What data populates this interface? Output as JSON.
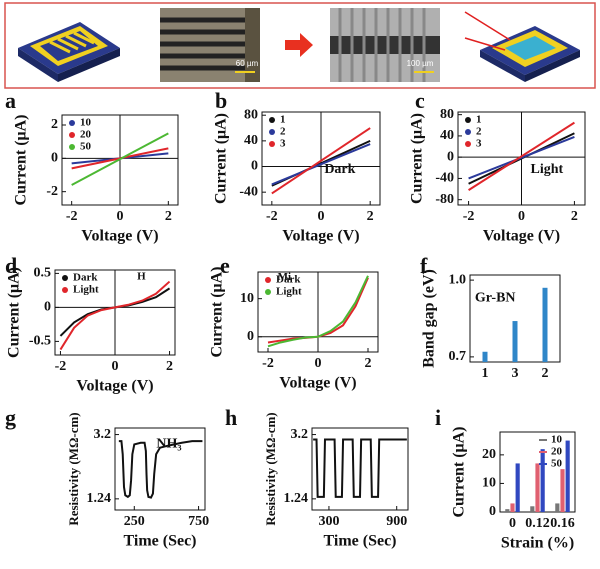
{
  "header": {
    "scale_bars": [
      "60 µm",
      "100 µm"
    ]
  },
  "chart_data": [
    {
      "panel": "a",
      "type": "line",
      "x": [
        -2,
        2
      ],
      "series": [
        {
          "name": "10",
          "color": "#2b3a9b",
          "values": [
            -0.3,
            0.3
          ]
        },
        {
          "name": "20",
          "color": "#e0262b",
          "values": [
            -0.6,
            0.6
          ]
        },
        {
          "name": "50",
          "color": "#4cb833",
          "values": [
            -1.6,
            1.5
          ]
        }
      ],
      "xlim": [
        -2.4,
        2.4
      ],
      "ylim": [
        -2.8,
        2.6
      ],
      "xticks": [
        -2,
        0,
        2
      ],
      "yticks": [
        -2,
        0,
        2
      ],
      "xlabel": "Voltage (V)",
      "ylabel": "Current (μA)",
      "legend": "upper left",
      "zero_lines": true
    },
    {
      "panel": "b",
      "type": "line",
      "x": [
        -2,
        2
      ],
      "series": [
        {
          "name": "1",
          "color": "#111111",
          "values": [
            -30,
            40
          ]
        },
        {
          "name": "2",
          "color": "#2b3a9b",
          "values": [
            -28,
            35
          ]
        },
        {
          "name": "3",
          "color": "#e0262b",
          "values": [
            -42,
            60
          ]
        }
      ],
      "xlim": [
        -2.4,
        2.4
      ],
      "ylim": [
        -60,
        85
      ],
      "xticks": [
        -2,
        0,
        2
      ],
      "yticks": [
        -40,
        0,
        40,
        80
      ],
      "xlabel": "Voltage (V)",
      "ylabel": "Current (μA)",
      "legend": "upper left",
      "zero_lines": true,
      "annotation": "Dark"
    },
    {
      "panel": "c",
      "type": "line",
      "x": [
        -2,
        2
      ],
      "series": [
        {
          "name": "1",
          "color": "#111111",
          "values": [
            -50,
            45
          ]
        },
        {
          "name": "2",
          "color": "#2b3a9b",
          "values": [
            -40,
            38
          ]
        },
        {
          "name": "3",
          "color": "#e0262b",
          "values": [
            -62,
            65
          ]
        }
      ],
      "xlim": [
        -2.4,
        2.4
      ],
      "ylim": [
        -90,
        85
      ],
      "xticks": [
        -2,
        0,
        2
      ],
      "yticks": [
        -80,
        -40,
        0,
        40,
        80
      ],
      "xlabel": "Voltage (V)",
      "ylabel": "Current (μA)",
      "legend": "upper left",
      "zero_lines": true,
      "annotation": "Light"
    },
    {
      "panel": "d",
      "type": "line",
      "x": [
        -2,
        -1.5,
        -1,
        -0.5,
        0,
        0.5,
        1,
        1.5,
        2
      ],
      "series": [
        {
          "name": "Dark",
          "color": "#111111",
          "values": [
            -0.42,
            -0.22,
            -0.1,
            -0.03,
            0,
            0.03,
            0.08,
            0.15,
            0.28
          ]
        },
        {
          "name": "Light",
          "color": "#e0262b",
          "values": [
            -0.62,
            -0.3,
            -0.12,
            -0.04,
            0,
            0.04,
            0.1,
            0.2,
            0.38
          ]
        }
      ],
      "xlim": [
        -2.2,
        2.2
      ],
      "ylim": [
        -0.7,
        0.55
      ],
      "xticks": [
        -2,
        0,
        2
      ],
      "yticks": [
        -0.5,
        0,
        0.5
      ],
      "xlabel": "Voltage (V)",
      "ylabel": "Current (μA)",
      "legend": "upper left",
      "zero_lines": true,
      "annotation": "H"
    },
    {
      "panel": "e",
      "type": "line",
      "x": [
        -2,
        -1.5,
        -1,
        -0.5,
        0,
        0.5,
        1,
        1.5,
        2
      ],
      "series": [
        {
          "name": "Dark",
          "color": "#e0262b",
          "values": [
            -1.5,
            -1,
            -0.5,
            -0.3,
            0,
            1,
            3,
            8,
            15.5
          ]
        },
        {
          "name": "Light",
          "color": "#4cb833",
          "values": [
            -2.5,
            -1.5,
            -0.8,
            -0.2,
            0,
            1.5,
            4,
            9,
            16
          ]
        }
      ],
      "xlim": [
        -2.4,
        2.4
      ],
      "ylim": [
        -4,
        17
      ],
      "xticks": [
        -2,
        0,
        2
      ],
      "yticks": [
        0,
        10
      ],
      "xlabel": "Voltage (V)",
      "ylabel": "Current (μA)",
      "legend": "upper left",
      "zero_lines": true,
      "annotation": "Mi"
    },
    {
      "panel": "f",
      "type": "bar",
      "categories": [
        "1",
        "3",
        "2"
      ],
      "values": [
        0.72,
        0.84,
        0.97
      ],
      "color": "#2f86c8",
      "ylim": [
        0.68,
        1.02
      ],
      "yticks": [
        0.7,
        {
          "value": 1,
          "label": "1.0"
        }
      ],
      "ylabel": "Band gap (eV)",
      "annotation": "Gr-BN"
    },
    {
      "panel": "g",
      "type": "line",
      "x": [
        130,
        150,
        160,
        170,
        180,
        200,
        215,
        225,
        235,
        250,
        300,
        330,
        340,
        345,
        350,
        360,
        380,
        395,
        405,
        420,
        450,
        500,
        560,
        620,
        700,
        780
      ],
      "values": [
        3.0,
        3.0,
        2.6,
        1.6,
        1.35,
        1.3,
        1.35,
        1.8,
        2.6,
        2.9,
        2.95,
        2.95,
        2.7,
        2.0,
        1.5,
        1.3,
        1.28,
        1.4,
        2.0,
        2.6,
        2.8,
        2.85,
        2.9,
        2.95,
        3.0,
        3.0
      ],
      "color": "#111111",
      "xlim": [
        100,
        800
      ],
      "ylim": [
        0.9,
        3.4
      ],
      "xticks": [
        250,
        750
      ],
      "yticks": [
        1.24,
        3.2
      ],
      "xlabel": "Time (Sec)",
      "ylabel": "Resistivity (MΩ-cm)",
      "annotation": "NH₃"
    },
    {
      "panel": "h",
      "type": "line",
      "x": [
        160,
        190,
        200,
        255,
        265,
        350,
        360,
        415,
        425,
        510,
        520,
        575,
        585,
        670,
        680,
        735,
        745,
        830,
        990
      ],
      "values": [
        3.05,
        3.05,
        1.3,
        1.3,
        3.05,
        3.05,
        1.3,
        1.3,
        3.05,
        3.05,
        1.3,
        1.3,
        3.05,
        3.05,
        1.3,
        1.3,
        3.05,
        3.05,
        3.05
      ],
      "color": "#111111",
      "xlim": [
        150,
        1000
      ],
      "ylim": [
        0.9,
        3.4
      ],
      "xticks": [
        300,
        900
      ],
      "yticks": [
        1.24,
        3.2
      ],
      "xlabel": "Time (Sec)",
      "ylabel": "Resistivity (MΩ-cm)"
    },
    {
      "panel": "i",
      "type": "bar",
      "categories": [
        "0",
        "0.12",
        "0.16"
      ],
      "series": [
        {
          "name": "10",
          "color": "#777777",
          "values": [
            1,
            2,
            3
          ]
        },
        {
          "name": "20",
          "color": "#e06070",
          "values": [
            3,
            17,
            15
          ]
        },
        {
          "name": "50",
          "color": "#3048c0",
          "values": [
            17,
            22,
            25
          ]
        }
      ],
      "ylim": [
        0,
        28
      ],
      "yticks": [
        0,
        10,
        20
      ],
      "xlabel": "Strain (%)",
      "ylabel": "Current (μA)",
      "legend": "upper right"
    }
  ]
}
